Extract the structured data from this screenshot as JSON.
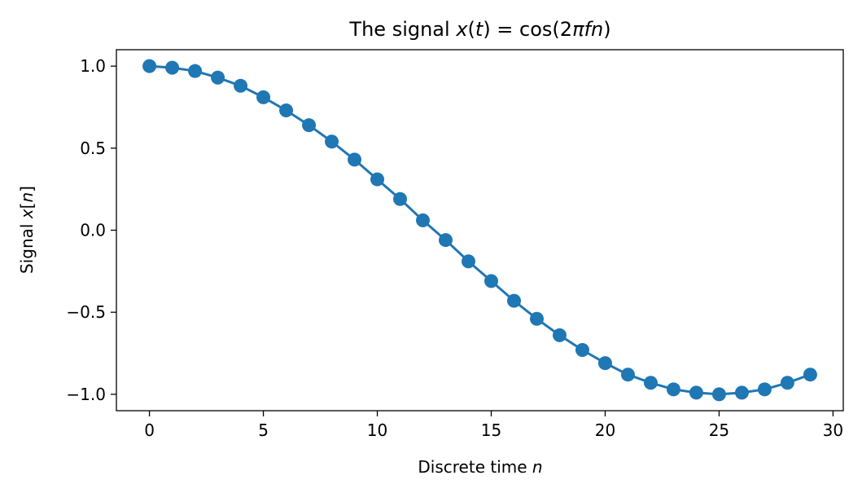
{
  "chart_data": {
    "type": "line",
    "title": {
      "prefix": "The signal ",
      "var_x": "x",
      "open": "(",
      "var_t": "t",
      "eq": ") = cos(2",
      "pi": "π",
      "fn": "fn",
      "close": ")"
    },
    "xlabel": {
      "text": "Discrete time ",
      "var": "n"
    },
    "ylabel": {
      "text": "Signal ",
      "var": "x",
      "bracket_open": "[",
      "index": "n",
      "bracket_close": "]"
    },
    "xlim": [
      -1.45,
      30.45
    ],
    "ylim": [
      -1.1,
      1.1
    ],
    "xticks": [
      0,
      5,
      10,
      15,
      20,
      25,
      30
    ],
    "xtick_labels": [
      "0",
      "5",
      "10",
      "15",
      "20",
      "25",
      "30"
    ],
    "yticks": [
      1.0,
      0.5,
      0.0,
      -0.5,
      -1.0
    ],
    "ytick_labels": [
      "1.0",
      "0.5",
      "0.0",
      "−0.5",
      "−1.0"
    ],
    "grid": false,
    "series": [
      {
        "color": "#1f77b4",
        "marker": "circle",
        "x": [
          0,
          1,
          2,
          3,
          4,
          5,
          6,
          7,
          8,
          9,
          10,
          11,
          12,
          13,
          14,
          15,
          16,
          17,
          18,
          19,
          20,
          21,
          22,
          23,
          24,
          25,
          26,
          27,
          28,
          29
        ],
        "y": [
          1.0,
          0.99,
          0.97,
          0.93,
          0.88,
          0.81,
          0.73,
          0.64,
          0.54,
          0.43,
          0.31,
          0.19,
          0.06,
          -0.06,
          -0.19,
          -0.31,
          -0.43,
          -0.54,
          -0.64,
          -0.73,
          -0.81,
          -0.88,
          -0.93,
          -0.97,
          -0.99,
          -1.0,
          -0.99,
          -0.97,
          -0.93,
          -0.88
        ]
      }
    ]
  }
}
